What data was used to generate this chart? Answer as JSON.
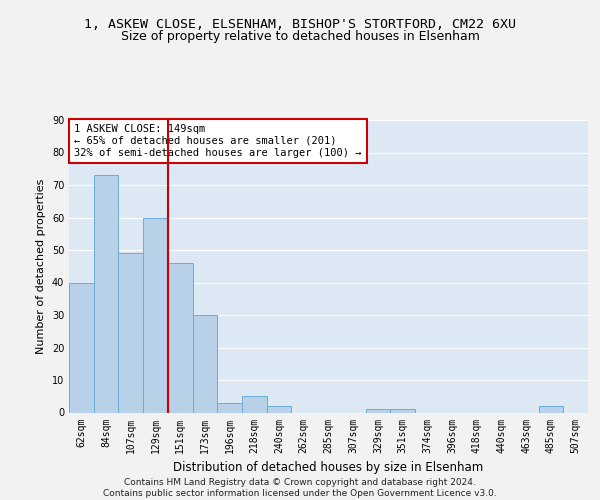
{
  "title1": "1, ASKEW CLOSE, ELSENHAM, BISHOP'S STORTFORD, CM22 6XU",
  "title2": "Size of property relative to detached houses in Elsenham",
  "xlabel": "Distribution of detached houses by size in Elsenham",
  "ylabel": "Number of detached properties",
  "categories": [
    "62sqm",
    "84sqm",
    "107sqm",
    "129sqm",
    "151sqm",
    "173sqm",
    "196sqm",
    "218sqm",
    "240sqm",
    "262sqm",
    "285sqm",
    "307sqm",
    "329sqm",
    "351sqm",
    "374sqm",
    "396sqm",
    "418sqm",
    "440sqm",
    "463sqm",
    "485sqm",
    "507sqm"
  ],
  "values": [
    40,
    73,
    49,
    60,
    46,
    30,
    3,
    5,
    2,
    0,
    0,
    0,
    1,
    1,
    0,
    0,
    0,
    0,
    0,
    2,
    0
  ],
  "bar_color": "#b8d0e8",
  "bar_edge_color": "#6aaed6",
  "vline_color": "#cc0000",
  "vline_x": 3.5,
  "annotation_text": "1 ASKEW CLOSE: 149sqm\n← 65% of detached houses are smaller (201)\n32% of semi-detached houses are larger (100) →",
  "annotation_box_color": "#ffffff",
  "annotation_box_edge": "#cc0000",
  "ylim": [
    0,
    90
  ],
  "yticks": [
    0,
    10,
    20,
    30,
    40,
    50,
    60,
    70,
    80,
    90
  ],
  "footer": "Contains HM Land Registry data © Crown copyright and database right 2024.\nContains public sector information licensed under the Open Government Licence v3.0.",
  "fig_bg_color": "#f2f2f2",
  "axes_bg_color": "#dce9f5",
  "grid_color": "#ffffff",
  "title1_fontsize": 9.5,
  "title2_fontsize": 9,
  "xlabel_fontsize": 8.5,
  "ylabel_fontsize": 8,
  "tick_fontsize": 7,
  "annotation_fontsize": 7.5,
  "footer_fontsize": 6.5
}
